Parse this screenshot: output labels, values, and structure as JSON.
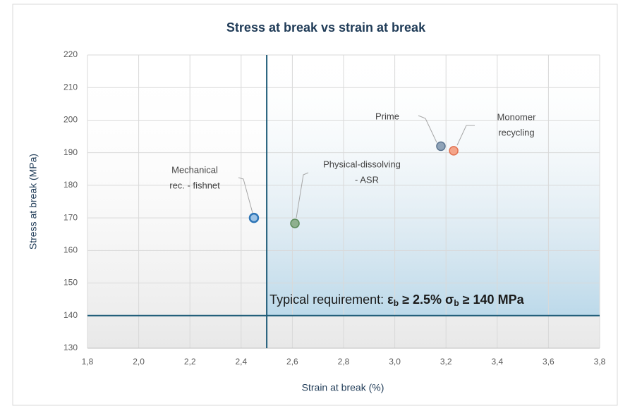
{
  "chart_data": {
    "type": "scatter",
    "title": "Stress at break vs strain at break",
    "x_label": "Strain at break (%)",
    "y_label": "Stress at break (MPa)",
    "xlim": [
      1.8,
      3.8
    ],
    "ylim": [
      130,
      220
    ],
    "xticks": [
      {
        "value": 1.8,
        "label": "1,8"
      },
      {
        "value": 2.0,
        "label": "2,0"
      },
      {
        "value": 2.2,
        "label": "2,2"
      },
      {
        "value": 2.4,
        "label": "2,4"
      },
      {
        "value": 2.6,
        "label": "2,6"
      },
      {
        "value": 2.8,
        "label": "2,8"
      },
      {
        "value": 3.0,
        "label": "3,0"
      },
      {
        "value": 3.2,
        "label": "3,2"
      },
      {
        "value": 3.4,
        "label": "3,4"
      },
      {
        "value": 3.6,
        "label": "3,6"
      },
      {
        "value": 3.8,
        "label": "3,8"
      }
    ],
    "yticks": [
      130,
      140,
      150,
      160,
      170,
      180,
      190,
      200,
      210,
      220
    ],
    "grid": true,
    "thresholds": {
      "x": 2.5,
      "y": 140
    },
    "annotation": [
      "Typical requirement: ",
      "ε",
      "b",
      " ≥ 2.5%  ",
      "σ",
      "b",
      " ≥ 140 MPa"
    ],
    "points": [
      {
        "label": [
          "Mechanical",
          "rec. - fishnet"
        ],
        "x": 2.45,
        "y": 170,
        "color": "#9dc3e6",
        "stroke": "#2e75b6"
      },
      {
        "label": [
          "Physical-dissolving",
          "- ASR"
        ],
        "x": 2.61,
        "y": 168.3,
        "color": "#8fb08f",
        "stroke": "#5a8a5a"
      },
      {
        "label": [
          "Prime"
        ],
        "x": 3.18,
        "y": 192,
        "color": "#8fa3b8",
        "stroke": "#5c7590"
      },
      {
        "label": [
          "Monomer",
          "recycling"
        ],
        "x": 3.23,
        "y": 190.6,
        "color": "#f4a58a",
        "stroke": "#e07050"
      }
    ]
  }
}
